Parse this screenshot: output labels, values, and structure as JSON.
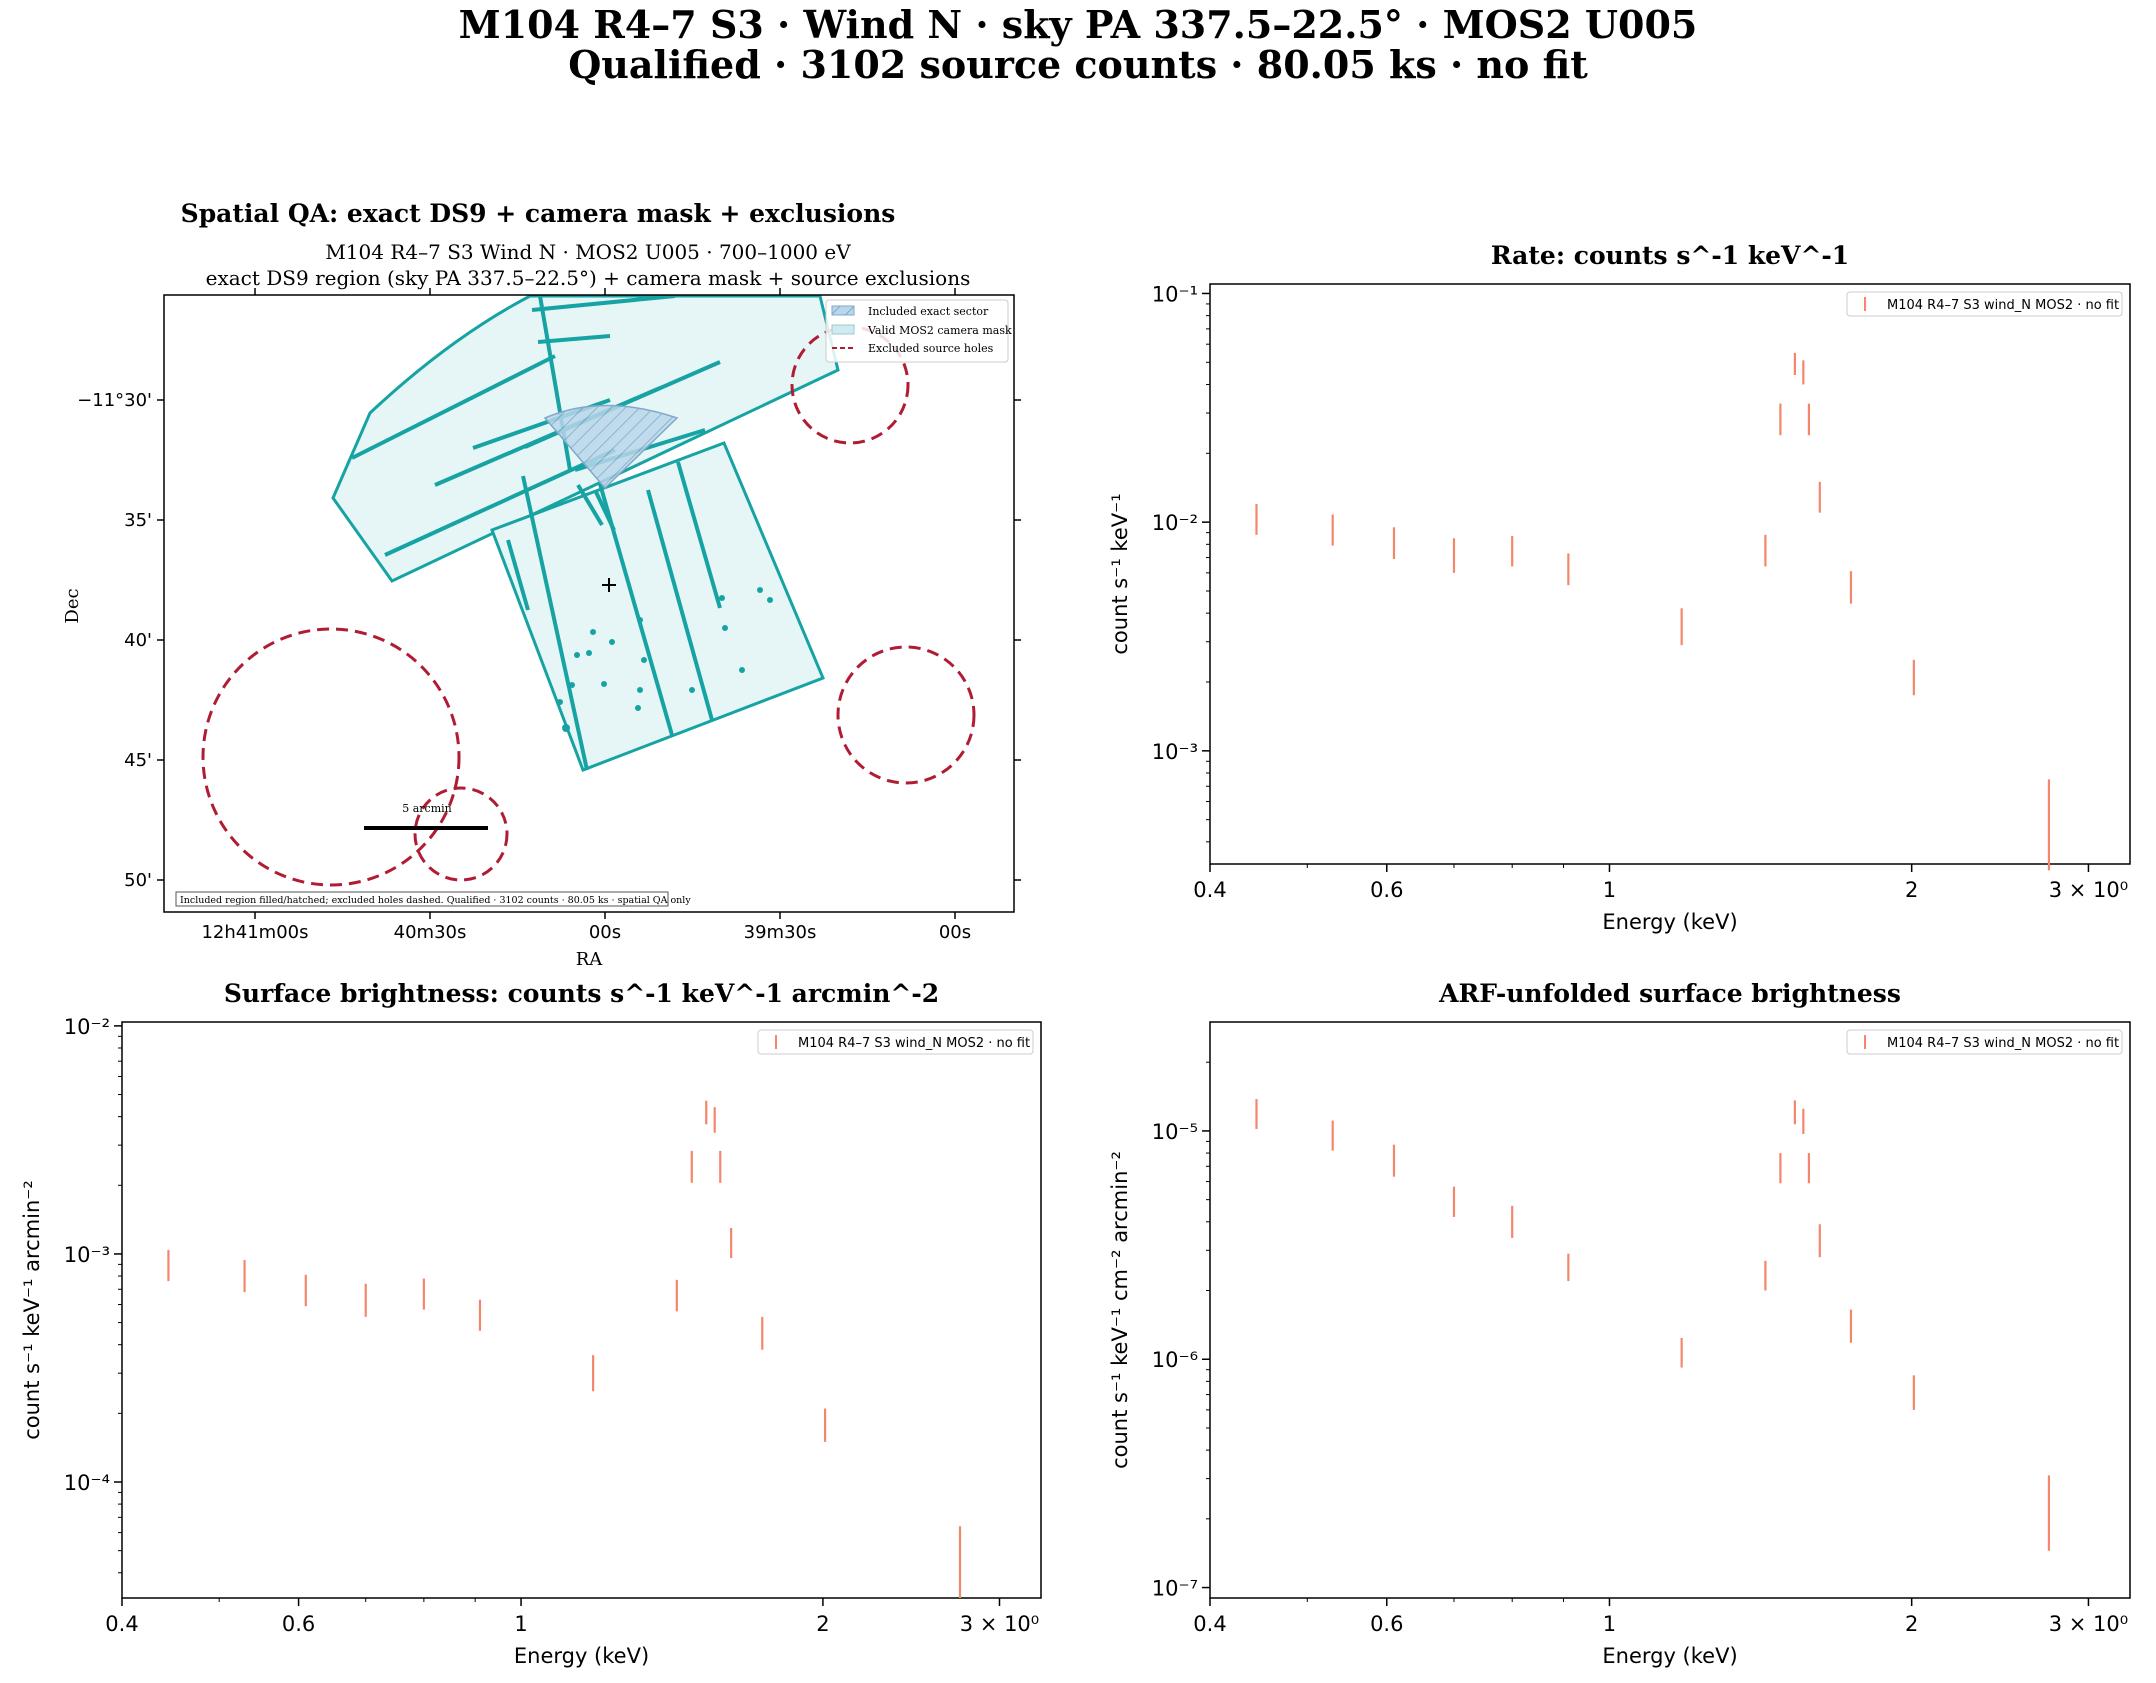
{
  "figure": {
    "title_line1": "M104 R4–7 S3 · Wind N · sky PA 337.5–22.5° · MOS2 U005",
    "title_line2": "Qualified · 3102 source counts · 80.05 ks · no fit"
  },
  "colors": {
    "teal": "#17a3a3",
    "teal_fill": "#e6f6f6",
    "sector_fill": "#9cc3dd",
    "exclusion": "#b01c34",
    "data": "#f4866c"
  },
  "spatial_panel": {
    "title": "Spatial QA: exact DS9 + camera mask + exclusions",
    "subtitle1": "M104 R4–7 S3 Wind N · MOS2 U005 · 700–1000 eV",
    "subtitle2": "exact DS9 region (sky PA 337.5–22.5°) + camera mask + source exclusions",
    "xlabel": "RA",
    "ylabel": "Dec",
    "ra_ticks": [
      "12h41m00s",
      "40m30s",
      "00s",
      "39m30s",
      "00s"
    ],
    "dec_ticks": [
      "−11°30'",
      "35'",
      "40'",
      "45'",
      "50'"
    ],
    "legend": [
      "Included exact sector",
      "Valid MOS2 camera mask",
      "Excluded source holes"
    ],
    "scalebar_label": "5 arcmin",
    "footnote": "Included region filled/hatched; excluded holes dashed. Qualified · 3102 counts · 80.05 ks · spatial QA only"
  },
  "chart_data": [
    {
      "type": "scatter",
      "title": "Rate: counts s^-1 keV^-1",
      "xlabel": "Energy (keV)",
      "ylabel": "count s⁻¹ keV⁻¹",
      "xscale": "log",
      "yscale": "log",
      "xlim": [
        0.4,
        3.3
      ],
      "ylim": [
        0.00032,
        0.11
      ],
      "xticks": [
        "0.4",
        "0.6",
        "1",
        "2",
        "3 × 10⁰"
      ],
      "yticks": [
        "10⁻¹",
        "10⁻²",
        "10⁻³"
      ],
      "legend": "top-right",
      "series": [
        {
          "name": "M104 R4–7 S3 wind_N MOS2 · no fit",
          "x": [
            0.445,
            0.53,
            0.61,
            0.7,
            0.8,
            0.91,
            1.18,
            1.43,
            1.48,
            1.53,
            1.56,
            1.58,
            1.62,
            1.74,
            2.01,
            2.74
          ],
          "y": [
            0.0103,
            0.0093,
            0.0081,
            0.0072,
            0.0075,
            0.0062,
            0.0036,
            0.0075,
            0.028,
            0.049,
            0.045,
            0.028,
            0.013,
            0.0052,
            0.0021,
            0.00048
          ],
          "ylo": [
            0.0088,
            0.0079,
            0.0069,
            0.006,
            0.0064,
            0.0053,
            0.0029,
            0.0064,
            0.024,
            0.044,
            0.04,
            0.024,
            0.011,
            0.0044,
            0.00175,
            0.0003
          ],
          "yhi": [
            0.012,
            0.0108,
            0.0095,
            0.0085,
            0.0087,
            0.0073,
            0.0042,
            0.0088,
            0.033,
            0.055,
            0.051,
            0.033,
            0.015,
            0.0061,
            0.0025,
            0.00075
          ]
        }
      ]
    },
    {
      "type": "scatter",
      "title": "Surface brightness: counts s^-1 keV^-1 arcmin^-2",
      "xlabel": "Energy (keV)",
      "ylabel": "count s⁻¹ keV⁻¹ arcmin⁻²",
      "xscale": "log",
      "yscale": "log",
      "xlim": [
        0.4,
        3.3
      ],
      "ylim": [
        3.1e-05,
        0.0104
      ],
      "xticks": [
        "0.4",
        "0.6",
        "1",
        "2",
        "3 × 10⁰"
      ],
      "yticks": [
        "10⁻²",
        "10⁻³",
        "10⁻⁴"
      ],
      "legend": "top-right",
      "series": [
        {
          "name": "M104 R4–7 S3 wind_N MOS2 · no fit",
          "x": [
            0.445,
            0.53,
            0.61,
            0.7,
            0.8,
            0.91,
            1.18,
            1.43,
            1.48,
            1.53,
            1.56,
            1.58,
            1.62,
            1.74,
            2.01,
            2.74
          ],
          "y": [
            0.00088,
            0.0008,
            0.00069,
            0.00062,
            0.00066,
            0.00053,
            0.00031,
            0.00065,
            0.0024,
            0.0042,
            0.0039,
            0.0024,
            0.00112,
            0.00045,
            0.00018,
            4.2e-05
          ],
          "ylo": [
            0.00076,
            0.00068,
            0.00059,
            0.00053,
            0.00057,
            0.00046,
            0.00025,
            0.00056,
            0.00205,
            0.0037,
            0.0034,
            0.00205,
            0.00096,
            0.00038,
            0.00015,
            3.1e-05
          ],
          "yhi": [
            0.00104,
            0.00094,
            0.00081,
            0.00074,
            0.00078,
            0.00063,
            0.00036,
            0.00077,
            0.00283,
            0.0047,
            0.0044,
            0.00283,
            0.0013,
            0.00053,
            0.00021,
            6.4e-05
          ]
        }
      ]
    },
    {
      "type": "scatter",
      "title": "ARF-unfolded surface brightness",
      "xlabel": "Energy (keV)",
      "ylabel": "count s⁻¹ keV⁻¹ cm⁻² arcmin⁻²",
      "xscale": "log",
      "yscale": "log",
      "xlim": [
        0.4,
        3.3
      ],
      "ylim": [
        9e-08,
        3e-05
      ],
      "xticks": [
        "0.4",
        "0.6",
        "1",
        "2",
        "3 × 10⁰"
      ],
      "yticks": [
        "10⁻⁵",
        "10⁻⁶",
        "10⁻⁷"
      ],
      "legend": "top-right",
      "series": [
        {
          "name": "M104 R4–7 S3 wind_N MOS2 · no fit",
          "x": [
            0.445,
            0.53,
            0.61,
            0.7,
            0.8,
            0.91,
            1.18,
            1.43,
            1.48,
            1.53,
            1.56,
            1.58,
            1.62,
            1.74,
            2.01,
            2.74
          ],
          "y": [
            1.18e-05,
            9.5e-06,
            7.4e-06,
            4.9e-06,
            4e-06,
            2.5e-06,
            1.08e-06,
            2.3e-06,
            6.9e-06,
            1.22e-05,
            1.11e-05,
            6.9e-06,
            3.3e-06,
            1.4e-06,
            7.2e-07,
            2.2e-07
          ],
          "ylo": [
            1.02e-05,
            8.2e-06,
            6.3e-06,
            4.2e-06,
            3.4e-06,
            2.2e-06,
            9.2e-07,
            2e-06,
            5.9e-06,
            1.07e-05,
            9.7e-06,
            5.9e-06,
            2.8e-06,
            1.18e-06,
            6e-07,
            1.45e-07
          ],
          "yhi": [
            1.38e-05,
            1.11e-05,
            8.7e-06,
            5.7e-06,
            4.7e-06,
            2.9e-06,
            1.24e-06,
            2.7e-06,
            8e-06,
            1.36e-05,
            1.25e-05,
            8e-06,
            3.9e-06,
            1.65e-06,
            8.5e-07,
            3.1e-07
          ]
        }
      ]
    }
  ]
}
